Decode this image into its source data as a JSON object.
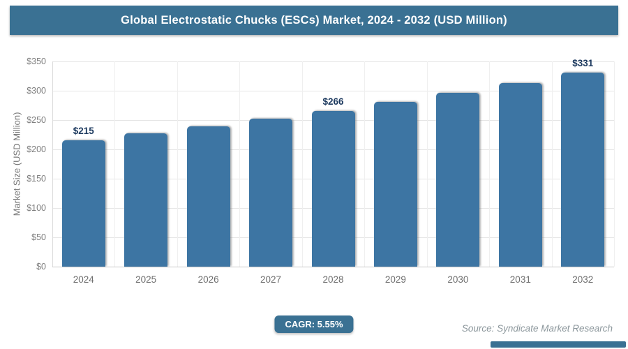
{
  "header": {
    "title": "Global Electrostatic Chucks (ESCs) Market, 2024 - 2032 (USD Million)"
  },
  "chart_data": {
    "type": "bar",
    "title": "Global Electrostatic Chucks (ESCs) Market, 2024 - 2032 (USD Million)",
    "categories": [
      "2024",
      "2025",
      "2026",
      "2027",
      "2028",
      "2029",
      "2030",
      "2031",
      "2032"
    ],
    "values": [
      215,
      227,
      239,
      252,
      266,
      281,
      296,
      313,
      331
    ],
    "value_labels": {
      "2024": "$215",
      "2028": "$266",
      "2032": "$331"
    },
    "xlabel": "",
    "ylabel": "Market Size (USD Million)",
    "ylim": [
      0,
      350
    ],
    "ytick_step": 50,
    "ytick_labels": [
      "$0",
      "$50",
      "$100",
      "$150",
      "$200",
      "$250",
      "$300",
      "$350"
    ],
    "grid": true,
    "legend": false,
    "bar_color": "#3d75a3"
  },
  "footer": {
    "cagr_label": "CAGR: 5.55%",
    "source": "Source: Syndicate Market Research"
  },
  "colors": {
    "accent": "#3a7193",
    "bar": "#3d75a3",
    "value_label": "#1d3a5f"
  }
}
